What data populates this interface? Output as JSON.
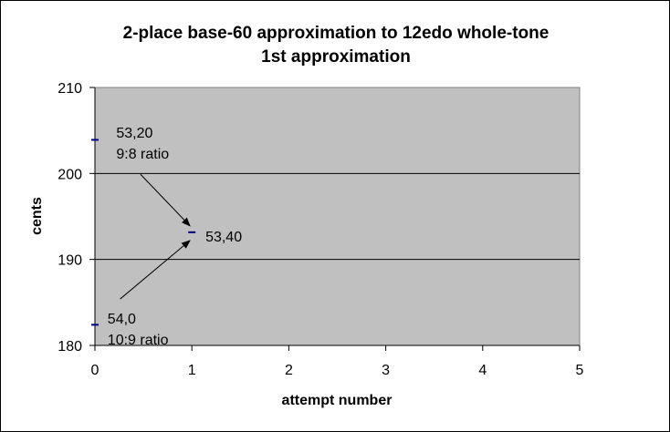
{
  "chart_data": {
    "type": "scatter",
    "title_lines": [
      "2-place base-60 approximation to 12edo whole-tone",
      "1st approximation"
    ],
    "xlabel": "attempt number",
    "ylabel": "cents",
    "xlim": [
      0,
      5
    ],
    "ylim": [
      180,
      210
    ],
    "x_ticks": [
      0,
      1,
      2,
      3,
      4,
      5
    ],
    "y_ticks": [
      180,
      190,
      200,
      210
    ],
    "grid": "horizontal",
    "legend": "none",
    "plot_background": "#c0c0c0",
    "marker_color": "#000080",
    "points": [
      {
        "x": 0,
        "y": 203.91
      },
      {
        "x": 0,
        "y": 182.4
      },
      {
        "x": 1,
        "y": 193.16
      }
    ],
    "annotations": [
      {
        "lines": [
          "53,20",
          "9:8 ratio"
        ],
        "anchor_x": 0.22,
        "anchor_y": 204.8,
        "arrow_from": [
          0.47,
          199.9
        ],
        "arrow_to": [
          0.98,
          193.9
        ]
      },
      {
        "lines": [
          "53,40"
        ],
        "anchor_x": 1.14,
        "anchor_y": 192.7
      },
      {
        "lines": [
          "54,0",
          "10:9 ratio"
        ],
        "anchor_x": 0.13,
        "anchor_y": 183.2,
        "arrow_from": [
          0.26,
          185.4
        ],
        "arrow_to": [
          0.98,
          192.2
        ]
      }
    ]
  }
}
